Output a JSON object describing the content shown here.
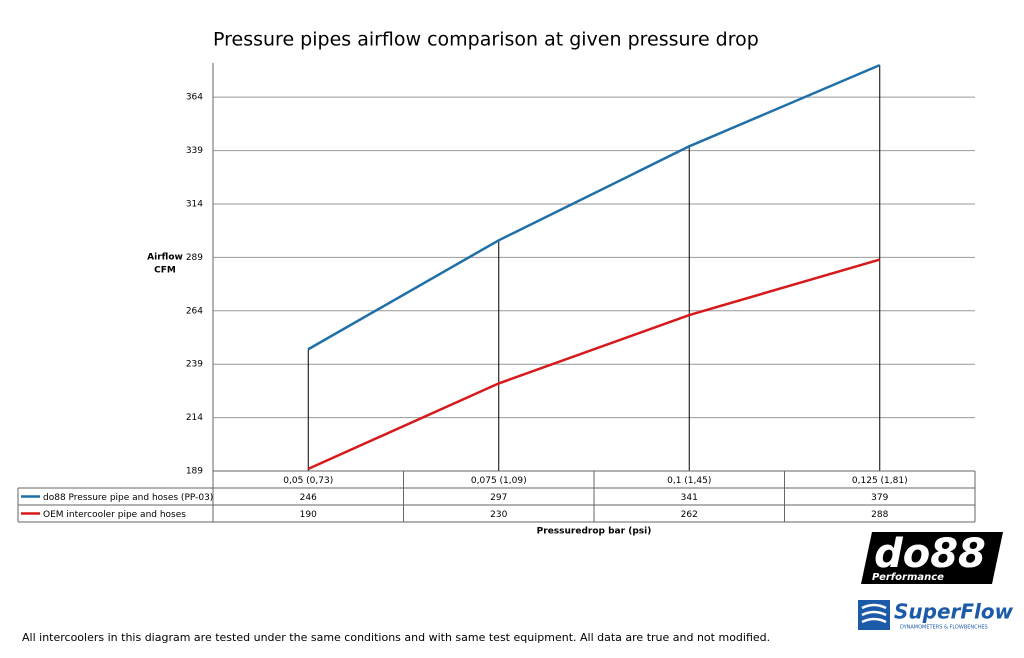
{
  "chart_data": {
    "type": "line",
    "title": "Pressure pipes airflow comparison at given pressure drop",
    "categories": [
      "0,05 (0,73)",
      "0,075 (1,09)",
      "0,1 (1,45)",
      "0,125 (1,81)"
    ],
    "series": [
      {
        "name": "do88 Pressure pipe and hoses (PP-03)",
        "color": "#1f6fa8",
        "values": [
          246,
          297,
          341,
          379
        ]
      },
      {
        "name": "OEM intercooler pipe and hoses",
        "color": "#d7191c",
        "values": [
          190,
          230,
          262,
          288
        ]
      }
    ],
    "ylim": [
      189,
      380
    ],
    "yticks": [
      189,
      214,
      239,
      264,
      289,
      314,
      339,
      364
    ],
    "ylabel": [
      "Airflow",
      "CFM"
    ],
    "xlabel": "Pressuredrop bar (psi)",
    "grid": true
  },
  "footnote": "All intercoolers in this diagram are tested under the same conditions and with same test equipment. All data are true and not modified.",
  "logos": {
    "do88": "do88",
    "do88_sub": "Performance",
    "superflow": "SuperFlow",
    "superflow_sub": "DYNAMOMETERS & FLOWBENCHES"
  }
}
